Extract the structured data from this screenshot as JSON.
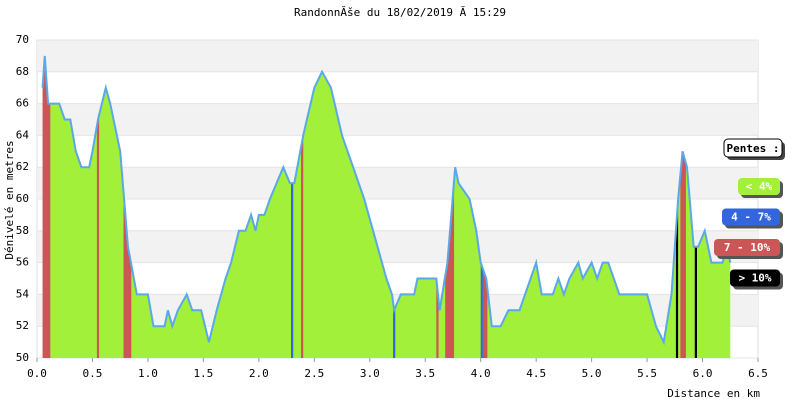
{
  "chart_data": {
    "type": "area",
    "title": "RandonnĂše du 18/02/2019 Ă  15:29",
    "x_label": "Distance en km",
    "y_label": "Dénivelé en metres",
    "xlim": [
      0,
      6.5
    ],
    "xticks": [
      {
        "value": 0,
        "label": "0.0"
      },
      0.5,
      {
        "value": 1,
        "label": "1.0"
      },
      1.5,
      {
        "value": 2,
        "label": "2.0"
      },
      2.5,
      {
        "value": 3,
        "label": "3.0"
      },
      3.5,
      {
        "value": 4,
        "label": "4.0"
      },
      4.5,
      {
        "value": 5,
        "label": "5.0"
      },
      5.5,
      {
        "value": 6,
        "label": "6.0"
      },
      6.5
    ],
    "ylim": [
      50,
      70
    ],
    "yticks": [
      50,
      52,
      54,
      56,
      58,
      60,
      62,
      64,
      66,
      68,
      70
    ],
    "grid": true,
    "series": [
      {
        "fill": "#a2f03a",
        "color": "#5aa8e8",
        "x": [
          0.05,
          0.07,
          0.1,
          0.2,
          0.25,
          0.3,
          0.35,
          0.4,
          0.47,
          0.5,
          0.55,
          0.62,
          0.66,
          0.75,
          0.82,
          0.9,
          1.0,
          1.05,
          1.15,
          1.18,
          1.22,
          1.27,
          1.35,
          1.4,
          1.48,
          1.55,
          1.62,
          1.7,
          1.75,
          1.82,
          1.88,
          1.93,
          1.97,
          2.0,
          2.05,
          2.1,
          2.22,
          2.28,
          2.32,
          2.4,
          2.5,
          2.57,
          2.65,
          2.75,
          2.85,
          2.95,
          3.07,
          3.15,
          3.2,
          3.22,
          3.28,
          3.4,
          3.43,
          3.6,
          3.63,
          3.7,
          3.77,
          3.8,
          3.9,
          3.96,
          4.0,
          4.05,
          4.1,
          4.18,
          4.25,
          4.35,
          4.45,
          4.5,
          4.55,
          4.65,
          4.7,
          4.75,
          4.8,
          4.88,
          4.92,
          5.0,
          5.05,
          5.1,
          5.15,
          5.2,
          5.25,
          5.5,
          5.58,
          5.65,
          5.72,
          5.78,
          5.82,
          5.86,
          5.92,
          5.96,
          6.02,
          6.08,
          6.18,
          6.22,
          6.25
        ],
        "values": [
          67,
          69,
          66,
          66,
          65,
          65,
          63,
          62,
          62,
          63,
          65,
          67,
          66,
          63,
          57,
          54,
          54,
          52,
          52,
          53,
          52,
          53,
          54,
          53,
          53,
          51,
          53,
          55,
          56,
          58,
          58,
          59,
          58,
          59,
          59,
          60,
          62,
          61,
          61,
          64,
          67,
          68,
          67,
          64,
          62,
          60,
          57,
          55,
          54,
          53,
          54,
          54,
          55,
          55,
          53,
          56,
          62,
          61,
          60,
          58,
          56,
          55,
          52,
          52,
          53,
          53,
          55,
          56,
          54,
          54,
          55,
          54,
          55,
          56,
          55,
          56,
          55,
          56,
          56,
          55,
          54,
          54,
          52,
          51,
          54,
          60,
          63,
          62,
          57,
          57,
          58,
          56,
          56,
          57,
          56
        ]
      }
    ],
    "highlights": [
      {
        "start": 0.05,
        "end": 0.12,
        "color": "#cc5555"
      },
      {
        "start": 0.54,
        "end": 0.56,
        "color": "#cc5555"
      },
      {
        "start": 0.78,
        "end": 0.85,
        "color": "#cc5555"
      },
      {
        "start": 2.29,
        "end": 2.31,
        "color": "#3366dd"
      },
      {
        "start": 2.38,
        "end": 2.4,
        "color": "#cc5555"
      },
      {
        "start": 3.21,
        "end": 3.23,
        "color": "#3366dd"
      },
      {
        "start": 3.6,
        "end": 3.62,
        "color": "#cc5555"
      },
      {
        "start": 3.68,
        "end": 3.76,
        "color": "#cc5555"
      },
      {
        "start": 4.0,
        "end": 4.02,
        "color": "#3366dd"
      },
      {
        "start": 4.02,
        "end": 4.06,
        "color": "#cc5555"
      },
      {
        "start": 5.76,
        "end": 5.78,
        "color": "#000000"
      },
      {
        "start": 5.8,
        "end": 5.85,
        "color": "#cc5555"
      },
      {
        "start": 5.93,
        "end": 5.95,
        "color": "#000000"
      }
    ],
    "legend_title": "Pentes :",
    "legend": [
      {
        "label": "< 4%",
        "color": "#a2f03a"
      },
      {
        "label": "4 - 7%",
        "color": "#3366dd"
      },
      {
        "label": "7 - 10%",
        "color": "#cc5555"
      },
      {
        "label": "> 10%",
        "color": "#000000"
      }
    ]
  }
}
